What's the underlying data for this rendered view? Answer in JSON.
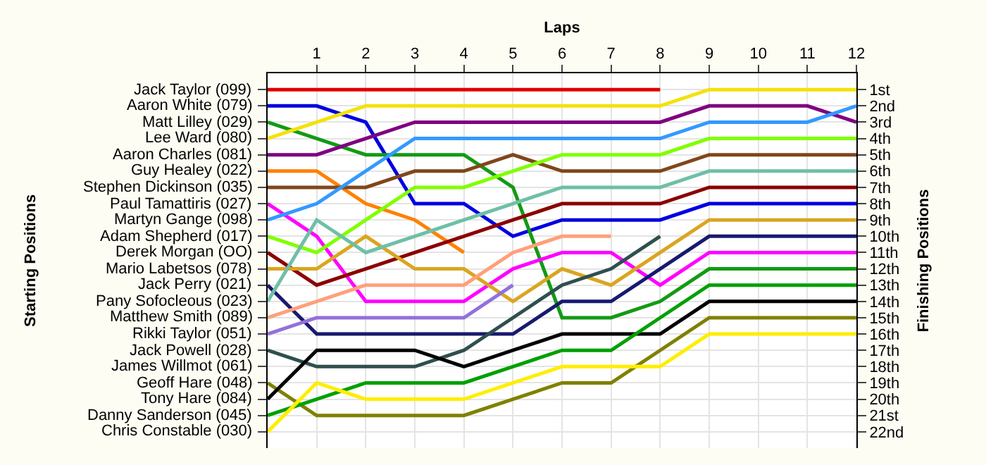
{
  "chart_data": {
    "type": "line",
    "xlabel": "Laps",
    "ylabel": "Finishing Positions",
    "x": [
      0,
      1,
      2,
      3,
      4,
      5,
      6,
      7,
      8,
      9,
      10,
      11,
      12
    ],
    "xlim": [
      0,
      12
    ],
    "xticks": [
      1,
      2,
      3,
      4,
      5,
      6,
      7,
      8,
      9,
      10,
      11,
      12
    ],
    "ylim": [
      23,
      0
    ],
    "yticks": [
      {
        "value": 1,
        "label": "1st"
      },
      {
        "value": 2,
        "label": "2nd"
      },
      {
        "value": 3,
        "label": "3rd"
      },
      {
        "value": 4,
        "label": "4th"
      },
      {
        "value": 5,
        "label": "5th"
      },
      {
        "value": 6,
        "label": "6th"
      },
      {
        "value": 7,
        "label": "7th"
      },
      {
        "value": 8,
        "label": "8th"
      },
      {
        "value": 9,
        "label": "9th"
      },
      {
        "value": 10,
        "label": "10th"
      },
      {
        "value": 11,
        "label": "11th"
      },
      {
        "value": 12,
        "label": "12th"
      },
      {
        "value": 13,
        "label": "13th"
      },
      {
        "value": 14,
        "label": "14th"
      },
      {
        "value": 15,
        "label": "15th"
      },
      {
        "value": 16,
        "label": "16th"
      },
      {
        "value": 17,
        "label": "17th"
      },
      {
        "value": 18,
        "label": "18th"
      },
      {
        "value": 19,
        "label": "19th"
      },
      {
        "value": 20,
        "label": "20th"
      },
      {
        "value": 21,
        "label": "21st"
      },
      {
        "value": 22,
        "label": "22nd"
      }
    ],
    "annotations": [
      "Starting Positions",
      "Jack Taylor (099)",
      "Aaron White (079)",
      "Matt Lilley (029)",
      "Lee Ward (080)",
      "Aaron Charles (081)",
      "Guy Healey (022)",
      "Stephen Dickinson (035)",
      "Paul Tamattiris (027)",
      "Martyn Gange (098)",
      "Adam Shepherd (017)",
      "Derek Morgan (OO)",
      "Mario Labetsos (078)",
      "Jack Perry (021)",
      "Pany Sofocleous (023)",
      "Matthew Smith (089)",
      "Rikki Taylor (051)",
      "Jack Powell (028)",
      "James Willmot (061)",
      "Geoff Hare (048)",
      "Tony Hare (084)",
      "Danny Sanderson (045)",
      "Chris Constable (030)"
    ],
    "grid": true,
    "marker": "none",
    "line_style": "solid",
    "series": [
      {
        "color": "#e00000",
        "values": [
          1,
          1,
          1,
          1,
          1,
          1,
          1,
          1,
          1,
          null,
          null,
          null,
          null
        ]
      },
      {
        "color": "#0000e0",
        "values": [
          2,
          2,
          3,
          8,
          8,
          10,
          9,
          9,
          9,
          8,
          8,
          8,
          8
        ]
      },
      {
        "color": "#139a13",
        "values": [
          3,
          4,
          5,
          5,
          5,
          7,
          15,
          15,
          14,
          12,
          12,
          12,
          12
        ]
      },
      {
        "color": "#f5e10a",
        "values": [
          4,
          3,
          2,
          2,
          2,
          2,
          2,
          2,
          2,
          1,
          1,
          1,
          1
        ]
      },
      {
        "color": "#800080",
        "values": [
          5,
          5,
          4,
          3,
          3,
          3,
          3,
          3,
          3,
          2,
          2,
          2,
          3
        ]
      },
      {
        "color": "#ff8000",
        "values": [
          6,
          6,
          8,
          9,
          11,
          null,
          null,
          null,
          null,
          null,
          null,
          null,
          null
        ]
      },
      {
        "color": "#80461b",
        "values": [
          7,
          7,
          7,
          6,
          6,
          5,
          6,
          6,
          6,
          5,
          5,
          5,
          5
        ]
      },
      {
        "color": "#ff00ff",
        "values": [
          8,
          10,
          14,
          14,
          14,
          12,
          11,
          11,
          13,
          11,
          11,
          11,
          11
        ]
      },
      {
        "color": "#3399ff",
        "values": [
          9,
          8,
          6,
          4,
          4,
          4,
          4,
          4,
          4,
          3,
          3,
          3,
          2
        ]
      },
      {
        "color": "#80ff00",
        "values": [
          10,
          11,
          9,
          7,
          7,
          6,
          5,
          5,
          5,
          4,
          4,
          4,
          4
        ]
      },
      {
        "color": "#8b0000",
        "values": [
          11,
          13,
          12,
          11,
          10,
          9,
          8,
          8,
          8,
          7,
          7,
          7,
          7
        ]
      },
      {
        "color": "#daa520",
        "values": [
          12,
          12,
          10,
          12,
          12,
          14,
          12,
          13,
          11,
          9,
          9,
          9,
          9
        ]
      },
      {
        "color": "#191970",
        "values": [
          13,
          16,
          16,
          16,
          16,
          16,
          14,
          14,
          12,
          10,
          10,
          10,
          10
        ]
      },
      {
        "color": "#6fbfa8",
        "values": [
          14,
          9,
          11,
          10,
          9,
          8,
          7,
          7,
          7,
          6,
          6,
          6,
          6
        ]
      },
      {
        "color": "#ffa07a",
        "values": [
          15,
          14,
          13,
          13,
          13,
          11,
          10,
          10,
          null,
          null,
          null,
          null,
          null
        ]
      },
      {
        "color": "#9370db",
        "values": [
          16,
          15,
          15,
          15,
          15,
          13,
          null,
          null,
          null,
          null,
          null,
          null,
          null
        ]
      },
      {
        "color": "#2f4f4f",
        "values": [
          17,
          18,
          18,
          18,
          17,
          15,
          13,
          12,
          10,
          null,
          null,
          null,
          null
        ]
      },
      {
        "color": "#808000",
        "values": [
          19,
          21,
          21,
          21,
          21,
          20,
          19,
          19,
          17,
          15,
          15,
          15,
          15
        ]
      },
      {
        "color": "#000000",
        "values": [
          20,
          17,
          17,
          17,
          18,
          17,
          16,
          16,
          16,
          14,
          14,
          14,
          14
        ]
      },
      {
        "color": "#00a000",
        "values": [
          21,
          20,
          19,
          19,
          19,
          18,
          17,
          17,
          15,
          13,
          13,
          13,
          13
        ]
      },
      {
        "color": "#ffee00",
        "values": [
          22,
          19,
          20,
          20,
          20,
          19,
          18,
          18,
          18,
          16,
          16,
          16,
          16
        ]
      }
    ]
  }
}
